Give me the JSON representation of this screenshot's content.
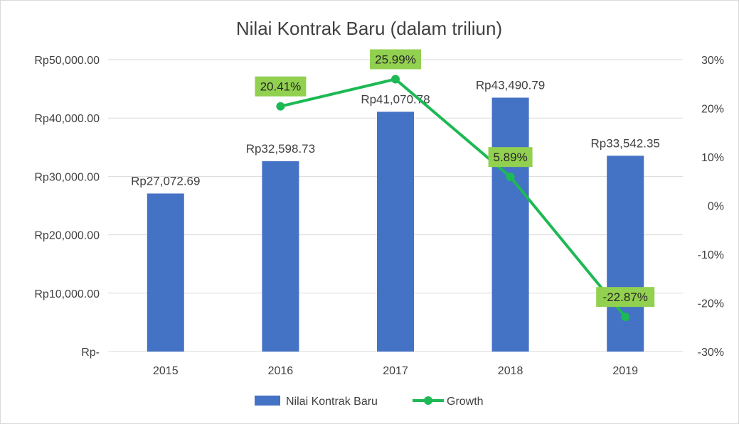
{
  "chart_data": {
    "type": "bar",
    "title": "Nilai Kontrak Baru (dalam triliun)",
    "categories": [
      "2015",
      "2016",
      "2017",
      "2018",
      "2019"
    ],
    "series": [
      {
        "name": "Nilai Kontrak Baru",
        "kind": "bar",
        "axis": "left",
        "color": "#4472c4",
        "values": [
          27072.69,
          32598.73,
          41070.78,
          43490.79,
          33542.35
        ],
        "labels": [
          "Rp27,072.69",
          "Rp32,598.73",
          "Rp41,070.78",
          "Rp43,490.79",
          "Rp33,542.35"
        ]
      },
      {
        "name": "Growth",
        "kind": "line",
        "axis": "right",
        "color": "#1db954",
        "values": [
          null,
          20.41,
          25.99,
          5.89,
          -22.87
        ],
        "labels": [
          "",
          "20.41%",
          "25.99%",
          "5.89%",
          "-22.87%"
        ],
        "label_bg": "#92d050"
      }
    ],
    "y_left": {
      "ylim": [
        0,
        50000
      ],
      "ticks": [
        0,
        10000,
        20000,
        30000,
        40000,
        50000
      ],
      "tick_labels": [
        "Rp-",
        "Rp10,000.00",
        "Rp20,000.00",
        "Rp30,000.00",
        "Rp40,000.00",
        "Rp50,000.00"
      ]
    },
    "y_right": {
      "ylim": [
        -30,
        30
      ],
      "ticks": [
        -30,
        -20,
        -10,
        0,
        10,
        20,
        30
      ],
      "tick_labels": [
        "-30%",
        "-20%",
        "-10%",
        "0%",
        "10%",
        "20%",
        "30%"
      ]
    },
    "grid": true,
    "legend": "bottom"
  }
}
